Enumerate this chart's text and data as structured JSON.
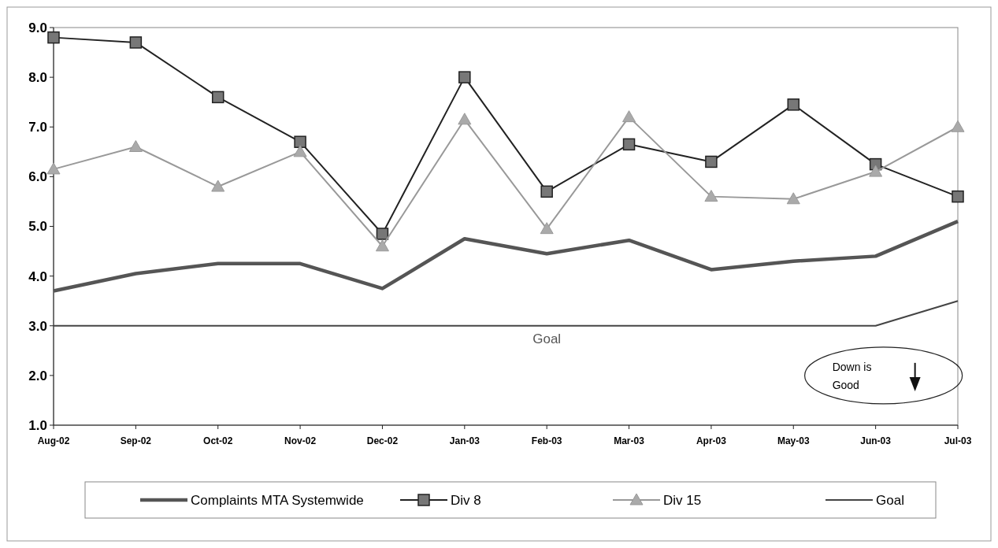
{
  "chart_data": {
    "type": "line",
    "categories": [
      "Aug-02",
      "Sep-02",
      "Oct-02",
      "Nov-02",
      "Dec-02",
      "Jan-03",
      "Feb-03",
      "Mar-03",
      "Apr-03",
      "May-03",
      "Jun-03",
      "Jul-03"
    ],
    "series": [
      {
        "name": "Complaints MTA Systemwide",
        "color": "#555555",
        "marker": "none",
        "values": [
          3.7,
          4.05,
          4.25,
          4.25,
          3.75,
          4.75,
          4.45,
          4.72,
          4.13,
          4.3,
          4.4,
          5.1
        ]
      },
      {
        "name": "Div 8",
        "color": "#222222",
        "marker": "square",
        "values": [
          8.8,
          8.7,
          7.6,
          6.7,
          4.85,
          8.0,
          5.7,
          6.65,
          6.3,
          7.45,
          6.25,
          5.6
        ]
      },
      {
        "name": "Div 15",
        "color": "#999999",
        "marker": "triangle",
        "values": [
          6.15,
          6.6,
          5.8,
          6.5,
          4.6,
          7.15,
          4.95,
          7.2,
          5.6,
          5.55,
          6.1,
          7.0
        ]
      },
      {
        "name": "Goal",
        "color": "#444444",
        "marker": "none",
        "values": [
          3.0,
          3.0,
          3.0,
          3.0,
          3.0,
          3.0,
          3.0,
          3.0,
          3.0,
          3.0,
          3.0,
          3.5
        ]
      }
    ],
    "ylim": [
      1.0,
      9.0
    ],
    "yticks": [
      {
        "value": 1,
        "label": "1.0"
      },
      {
        "value": 2,
        "label": "2.0"
      },
      {
        "value": 3,
        "label": "3.0"
      },
      {
        "value": 4,
        "label": "4.0"
      },
      {
        "value": 5,
        "label": "5.0"
      },
      {
        "value": 6,
        "label": "6.0"
      },
      {
        "value": 7,
        "label": "7.0"
      },
      {
        "value": 8,
        "label": "8.0"
      },
      {
        "value": 9,
        "label": "9.0"
      }
    ],
    "annotations": [
      {
        "text": "Goal",
        "x": "Feb-03",
        "y": 3.0
      },
      "Down is Good"
    ],
    "legend": "bottom",
    "grid": false,
    "line_style": "solid"
  }
}
